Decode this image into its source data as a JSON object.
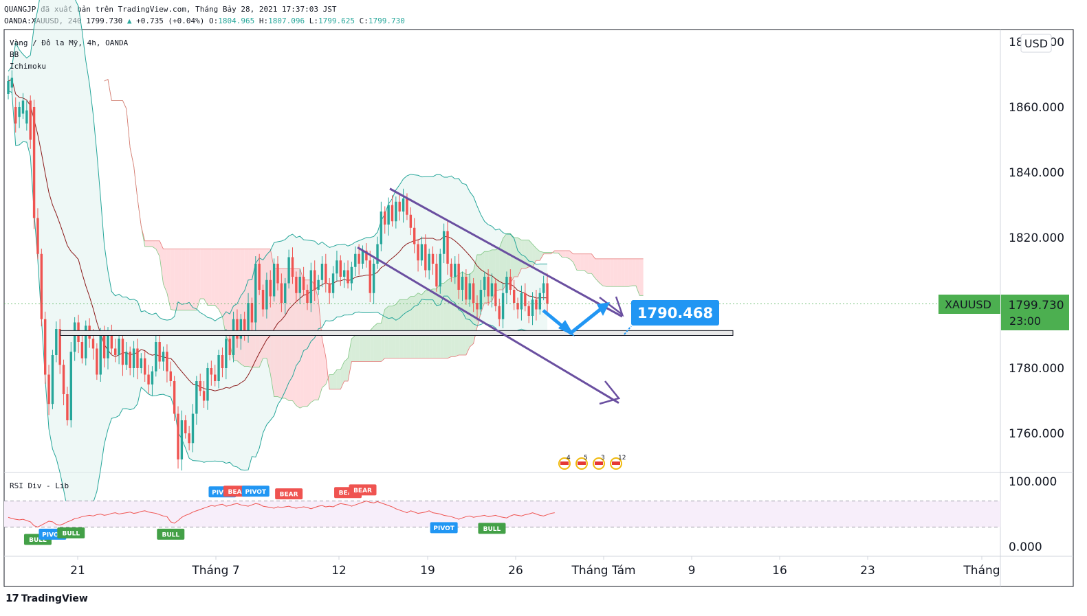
{
  "header": {
    "line1": "QUANGJP đã xuất bản trên TradingView.com, Tháng Bảy 28, 2021 17:37:03 JST",
    "symbol_info": "OANDA:XAUUSD, 240",
    "last": "1799.730",
    "change_arrow": "▲",
    "change": "+0.735 (+0.04%)",
    "open_label": "O:",
    "open": "1804.965",
    "high_label": "H:",
    "high": "1807.096",
    "low_label": "L:",
    "low": "1799.625",
    "close_label": "C:",
    "close": "1799.730"
  },
  "legend": {
    "title": "Vàng / Đô la Mỹ, 4h, OANDA",
    "bb": "BB",
    "ichimoku": "Ichimoku",
    "rsi": "RSI Div - Lib"
  },
  "currency": "USD",
  "price_tag": {
    "symbol": "XAUUSD",
    "price": "1799.730",
    "countdown": "23:00",
    "color": "#4caf50"
  },
  "target_label": {
    "value": "1790.468",
    "color": "#2196f3"
  },
  "footer": {
    "logo": "17",
    "brand": "TradingView"
  },
  "colors": {
    "up": "#26a69a",
    "down": "#ef5350",
    "bb_line": "#26a69a",
    "bb_fill": "#e0f2ef",
    "cloud_bull": "#c8e6c9",
    "cloud_bear": "#ffcdd2",
    "basis": "#8b1a1a",
    "channel": "#6a4fa0",
    "arrow": "#2196f3",
    "rsi": "#ef5350",
    "rsi_band": "#f7eefa"
  },
  "chart_data": [
    {
      "type": "candlestick",
      "title": "Vàng / Đô la Mỹ, 4h, OANDA",
      "y_axis": {
        "ticks": [
          1760,
          1780,
          1800,
          1820,
          1840,
          1860,
          1880
        ],
        "tick_labels": [
          "1760.000",
          "1780.000",
          "1800.000",
          "1820.000",
          "1840.000",
          "1860.000",
          "1880.000"
        ],
        "range": [
          1748,
          1893
        ]
      },
      "x_axis": {
        "ticks": [
          "21",
          "Tháng 7",
          "12",
          "19",
          "26",
          "Tháng Tám",
          "9",
          "16",
          "23",
          "Tháng"
        ]
      },
      "ohlc_path": [
        [
          1864,
          1868
        ],
        [
          1866,
          1869
        ],
        [
          1860,
          1855
        ],
        [
          1857,
          1860
        ],
        [
          1858,
          1862
        ],
        [
          1855,
          1859
        ],
        [
          1862,
          1850
        ],
        [
          1860,
          1826
        ],
        [
          1826,
          1815
        ],
        [
          1815,
          1795
        ],
        [
          1795,
          1778
        ],
        [
          1778,
          1769
        ],
        [
          1769,
          1784
        ],
        [
          1784,
          1792
        ],
        [
          1792,
          1781
        ],
        [
          1781,
          1772
        ],
        [
          1772,
          1764
        ],
        [
          1764,
          1785
        ],
        [
          1785,
          1794
        ],
        [
          1794,
          1788
        ],
        [
          1788,
          1783
        ],
        [
          1783,
          1793
        ],
        [
          1793,
          1789
        ],
        [
          1789,
          1786
        ],
        [
          1786,
          1778
        ],
        [
          1778,
          1790
        ],
        [
          1790,
          1783
        ],
        [
          1783,
          1791
        ],
        [
          1791,
          1786
        ],
        [
          1786,
          1784
        ],
        [
          1784,
          1789
        ],
        [
          1789,
          1781
        ],
        [
          1781,
          1785
        ],
        [
          1785,
          1780
        ],
        [
          1780,
          1786
        ],
        [
          1786,
          1780
        ],
        [
          1780,
          1783
        ],
        [
          1783,
          1778
        ],
        [
          1778,
          1775
        ],
        [
          1775,
          1779
        ],
        [
          1779,
          1788
        ],
        [
          1788,
          1782
        ],
        [
          1782,
          1785
        ],
        [
          1785,
          1779
        ],
        [
          1779,
          1776
        ],
        [
          1776,
          1766
        ],
        [
          1766,
          1752
        ],
        [
          1752,
          1764
        ],
        [
          1764,
          1760
        ],
        [
          1760,
          1757
        ],
        [
          1757,
          1766
        ],
        [
          1766,
          1776
        ],
        [
          1776,
          1773
        ],
        [
          1773,
          1770
        ],
        [
          1770,
          1780
        ],
        [
          1780,
          1778
        ],
        [
          1778,
          1776
        ],
        [
          1776,
          1784
        ],
        [
          1784,
          1780
        ],
        [
          1780,
          1789
        ],
        [
          1789,
          1784
        ],
        [
          1784,
          1795
        ],
        [
          1795,
          1789
        ],
        [
          1789,
          1795
        ],
        [
          1795,
          1790
        ],
        [
          1790,
          1800
        ],
        [
          1800,
          1794
        ],
        [
          1794,
          1812
        ],
        [
          1812,
          1804
        ],
        [
          1804,
          1798
        ],
        [
          1798,
          1807
        ],
        [
          1807,
          1802
        ],
        [
          1802,
          1812
        ],
        [
          1812,
          1806
        ],
        [
          1806,
          1800
        ],
        [
          1800,
          1806
        ],
        [
          1806,
          1814
        ],
        [
          1814,
          1808
        ],
        [
          1808,
          1803
        ],
        [
          1803,
          1808
        ],
        [
          1808,
          1804
        ],
        [
          1804,
          1800
        ],
        [
          1800,
          1810
        ],
        [
          1810,
          1804
        ],
        [
          1804,
          1807
        ],
        [
          1807,
          1812
        ],
        [
          1812,
          1806
        ],
        [
          1806,
          1803
        ],
        [
          1803,
          1809
        ],
        [
          1809,
          1813
        ],
        [
          1813,
          1808
        ],
        [
          1808,
          1810
        ],
        [
          1810,
          1806
        ],
        [
          1806,
          1811
        ],
        [
          1811,
          1815
        ],
        [
          1815,
          1812
        ],
        [
          1812,
          1816
        ],
        [
          1816,
          1813
        ],
        [
          1813,
          1803
        ],
        [
          1803,
          1812
        ],
        [
          1812,
          1818
        ],
        [
          1818,
          1828
        ],
        [
          1828,
          1824
        ],
        [
          1824,
          1830
        ],
        [
          1830,
          1825
        ],
        [
          1825,
          1831
        ],
        [
          1831,
          1828
        ],
        [
          1828,
          1832
        ],
        [
          1832,
          1827
        ],
        [
          1827,
          1823
        ],
        [
          1823,
          1818
        ],
        [
          1818,
          1813
        ],
        [
          1813,
          1818
        ],
        [
          1818,
          1810
        ],
        [
          1810,
          1815
        ],
        [
          1815,
          1812
        ],
        [
          1812,
          1805
        ],
        [
          1805,
          1815
        ],
        [
          1815,
          1822
        ],
        [
          1822,
          1812
        ],
        [
          1812,
          1808
        ],
        [
          1808,
          1812
        ],
        [
          1812,
          1804
        ],
        [
          1804,
          1808
        ],
        [
          1808,
          1801
        ],
        [
          1801,
          1806
        ],
        [
          1806,
          1800
        ],
        [
          1800,
          1798
        ],
        [
          1798,
          1804
        ],
        [
          1804,
          1808
        ],
        [
          1808,
          1802
        ],
        [
          1802,
          1806
        ],
        [
          1806,
          1799
        ],
        [
          1799,
          1795
        ],
        [
          1795,
          1803
        ],
        [
          1803,
          1808
        ],
        [
          1808,
          1804
        ],
        [
          1804,
          1800
        ],
        [
          1800,
          1798
        ],
        [
          1798,
          1803
        ],
        [
          1803,
          1799
        ],
        [
          1799,
          1796
        ],
        [
          1796,
          1801
        ],
        [
          1801,
          1798
        ],
        [
          1798,
          1803
        ],
        [
          1803,
          1806
        ],
        [
          1806,
          1799.73
        ]
      ],
      "channel": {
        "upper_start": [
          1835,
          96
        ],
        "upper_end": [
          1800,
          182
        ],
        "lower_start": [
          1817,
          86
        ],
        "lower_end": [
          1771,
          183
        ]
      },
      "support_zone": [
        1790,
        1791.5
      ]
    },
    {
      "type": "line",
      "title": "RSI Div - Lib",
      "y_axis": {
        "ticks": [
          0,
          100
        ],
        "tick_labels": [
          "0.000",
          "100.000"
        ],
        "range": [
          -10,
          108
        ]
      },
      "bands": [
        30,
        70
      ],
      "values": [
        45,
        43,
        42,
        41,
        42,
        40,
        38,
        32,
        30,
        33,
        36,
        39,
        38,
        34,
        33,
        35,
        38,
        40,
        43,
        44,
        46,
        47,
        48,
        47,
        49,
        50,
        48,
        49,
        51,
        52,
        50,
        51,
        52,
        53,
        51,
        52,
        54,
        55,
        53,
        52,
        51,
        49,
        47,
        46,
        38,
        36,
        40,
        45,
        48,
        50,
        53,
        55,
        57,
        59,
        61,
        63,
        62,
        64,
        65,
        62,
        63,
        65,
        66,
        64,
        63,
        62,
        64,
        66,
        65,
        62,
        61,
        60,
        59,
        61,
        60,
        61,
        62,
        60,
        59,
        60,
        61,
        60,
        58,
        60,
        62,
        63,
        61,
        62,
        61,
        64,
        66,
        65,
        64,
        62,
        64,
        66,
        68,
        70,
        68,
        67,
        69,
        67,
        65,
        63,
        61,
        58,
        56,
        54,
        52,
        55,
        53,
        51,
        52,
        53,
        55,
        52,
        51,
        50,
        48,
        47,
        46,
        44,
        42,
        44,
        46,
        47,
        45,
        46,
        47,
        48,
        46,
        47,
        48,
        46,
        45,
        44,
        47,
        49,
        48,
        47,
        49,
        50,
        52,
        50,
        48,
        47,
        49,
        51,
        52
      ],
      "markers": [
        {
          "label": "BULL",
          "type": "bull",
          "i": 8
        },
        {
          "label": "PIVOT",
          "type": "pivot",
          "i": 12
        },
        {
          "label": "BULL",
          "type": "bull",
          "i": 17
        },
        {
          "label": "BULL",
          "type": "bull",
          "i": 44
        },
        {
          "label": "PIVOT",
          "type": "pivot_top",
          "i": 58
        },
        {
          "label": "BEAR",
          "type": "bear",
          "i": 62
        },
        {
          "label": "PIVOT",
          "type": "pivot_top",
          "i": 67
        },
        {
          "label": "BEAR",
          "type": "bear",
          "i": 76
        },
        {
          "label": "BEAR",
          "type": "bear",
          "i": 92
        },
        {
          "label": "BEAR",
          "type": "bear",
          "i": 96
        },
        {
          "label": "PIVOT",
          "type": "pivot",
          "i": 118
        },
        {
          "label": "BULL",
          "type": "bull",
          "i": 131
        }
      ]
    }
  ],
  "events": [
    "4",
    "5",
    "3",
    "12"
  ]
}
